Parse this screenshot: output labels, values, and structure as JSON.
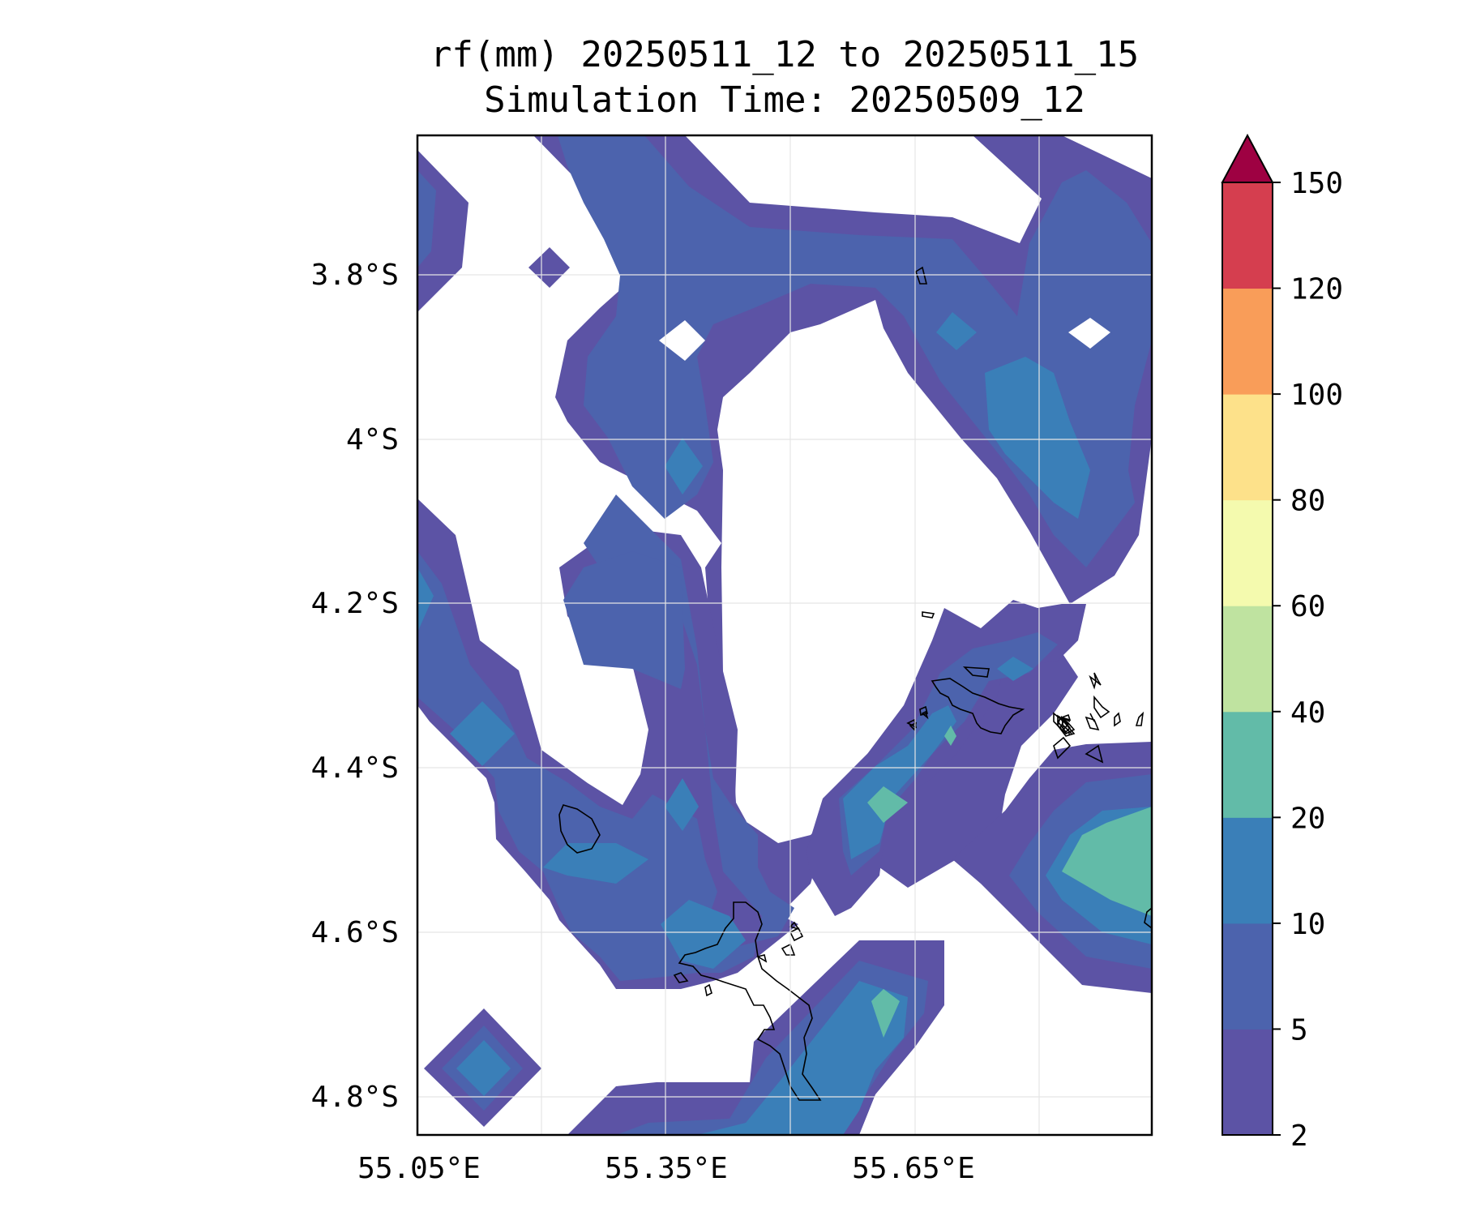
{
  "chart_data": {
    "type": "contour_map",
    "title_line1": "rf(mm) 20250511_12 to 20250511_15",
    "title_line2": "Simulation Time: 20250509_12",
    "x_axis": {
      "range": [
        55.05,
        55.945
      ],
      "ticks": [
        55.05,
        55.35,
        55.65
      ],
      "tick_labels": [
        "55.05°E",
        "55.35°E",
        "55.65°E"
      ],
      "grid_ticks": [
        55.2,
        55.35,
        55.5,
        55.65,
        55.8
      ]
    },
    "y_axis": {
      "range": [
        -4.845,
        -3.63
      ],
      "ticks": [
        -3.8,
        -4.0,
        -4.2,
        -4.4,
        -4.6,
        -4.8
      ],
      "tick_labels": [
        "3.8°S",
        "4°S",
        "4.2°S",
        "4.4°S",
        "4.6°S",
        "4.8°S"
      ]
    },
    "grid": true,
    "colorbar": {
      "levels": [
        2,
        5,
        10,
        20,
        40,
        60,
        80,
        100,
        120,
        150
      ],
      "level_labels": [
        "2",
        "5",
        "10",
        "20",
        "40",
        "60",
        "80",
        "100",
        "120",
        "150"
      ],
      "colors": [
        "#5c53a5",
        "#4c63ad",
        "#3a7fb8",
        "#62bba8",
        "#bfe3a0",
        "#f4faae",
        "#fde18a",
        "#f99d59",
        "#d53e4f"
      ],
      "extend_max_color": "#9e0142",
      "extend": "max"
    }
  }
}
